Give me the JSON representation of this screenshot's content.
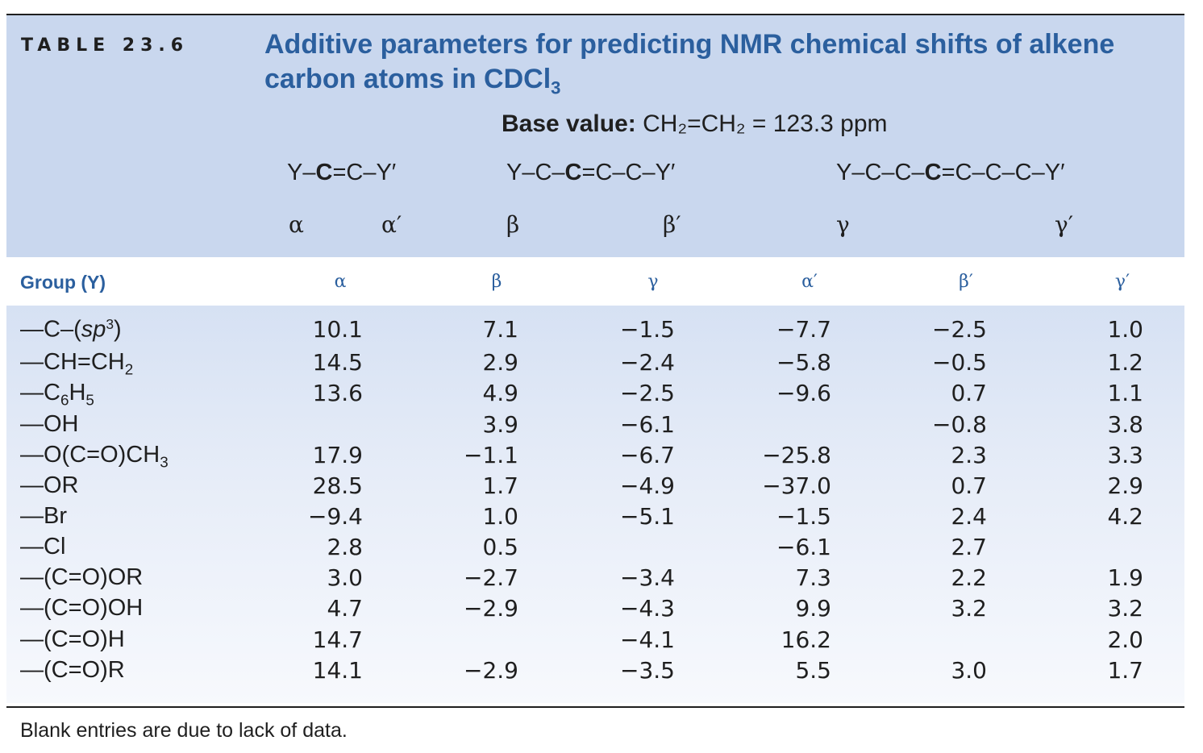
{
  "table_label": "TABLE 23.6",
  "title_line1": "Additive parameters for predicting NMR chemical shifts of alkene",
  "title_line2": "carbon atoms in CDCl",
  "title_line2_sub": "3",
  "base_label": "Base value:",
  "base_value": "CH₂=CH₂ = 123.3 ppm",
  "schematics": {
    "alpha": {
      "pre": "Y–",
      "bold": "C",
      "post": "=C–Y′"
    },
    "beta": {
      "pre": "Y–C–",
      "bold": "C",
      "post": "=C–C–Y′"
    },
    "gamma": {
      "pre": "Y–C–C–",
      "bold": "C",
      "post": "=C–C–C–Y′"
    }
  },
  "greek_labels": [
    "α",
    "α′",
    "β",
    "β′",
    "γ",
    "γ′"
  ],
  "column_headers": {
    "group": "Group (Y)",
    "cols": [
      "α",
      "β",
      "γ",
      "α′",
      "β′",
      "γ′"
    ]
  },
  "rows": [
    {
      "group_main": "—C–(",
      "group_ital": "sp",
      "group_sup": "3",
      "group_tail": ")",
      "values": [
        "10.1",
        "7.1",
        "−1.5",
        "−7.7",
        "−2.5",
        "1.0"
      ]
    },
    {
      "group_main": "—CH=CH",
      "group_sub": "2",
      "values": [
        "14.5",
        "2.9",
        "−2.4",
        "−5.8",
        "−0.5",
        "1.2"
      ]
    },
    {
      "group_main": "—C",
      "group_sub": "6",
      "group_mid": "H",
      "group_sub2": "5",
      "values": [
        "13.6",
        "4.9",
        "−2.5",
        "−9.6",
        "0.7",
        "1.1"
      ]
    },
    {
      "group_main": "—OH",
      "values": [
        "",
        "3.9",
        "−6.1",
        "",
        "−0.8",
        "3.8"
      ]
    },
    {
      "group_main": "—O(C=O)CH",
      "group_sub": "3",
      "values": [
        "17.9",
        "−1.1",
        "−6.7",
        "−25.8",
        "2.3",
        "3.3"
      ]
    },
    {
      "group_main": "—OR",
      "values": [
        "28.5",
        "1.7",
        "−4.9",
        "−37.0",
        "0.7",
        "2.9"
      ]
    },
    {
      "group_main": "—Br",
      "values": [
        "−9.4",
        "1.0",
        "−5.1",
        "−1.5",
        "2.4",
        "4.2"
      ]
    },
    {
      "group_main": "—Cl",
      "values": [
        "2.8",
        "0.5",
        "",
        "−6.1",
        "2.7",
        ""
      ]
    },
    {
      "group_main": "—(C=O)OR",
      "values": [
        "3.0",
        "−2.7",
        "−3.4",
        "7.3",
        "2.2",
        "1.9"
      ]
    },
    {
      "group_main": "—(C=O)OH",
      "values": [
        "4.7",
        "−2.9",
        "−4.3",
        "9.9",
        "3.2",
        "3.2"
      ]
    },
    {
      "group_main": "—(C=O)H",
      "values": [
        "14.7",
        "",
        "−4.1",
        "16.2",
        "",
        "2.0"
      ]
    },
    {
      "group_main": "—(C=O)R",
      "values": [
        "14.1",
        "−2.9",
        "−3.5",
        "5.5",
        "3.0",
        "1.7"
      ]
    }
  ],
  "footnote": "Blank entries are due to lack of data."
}
